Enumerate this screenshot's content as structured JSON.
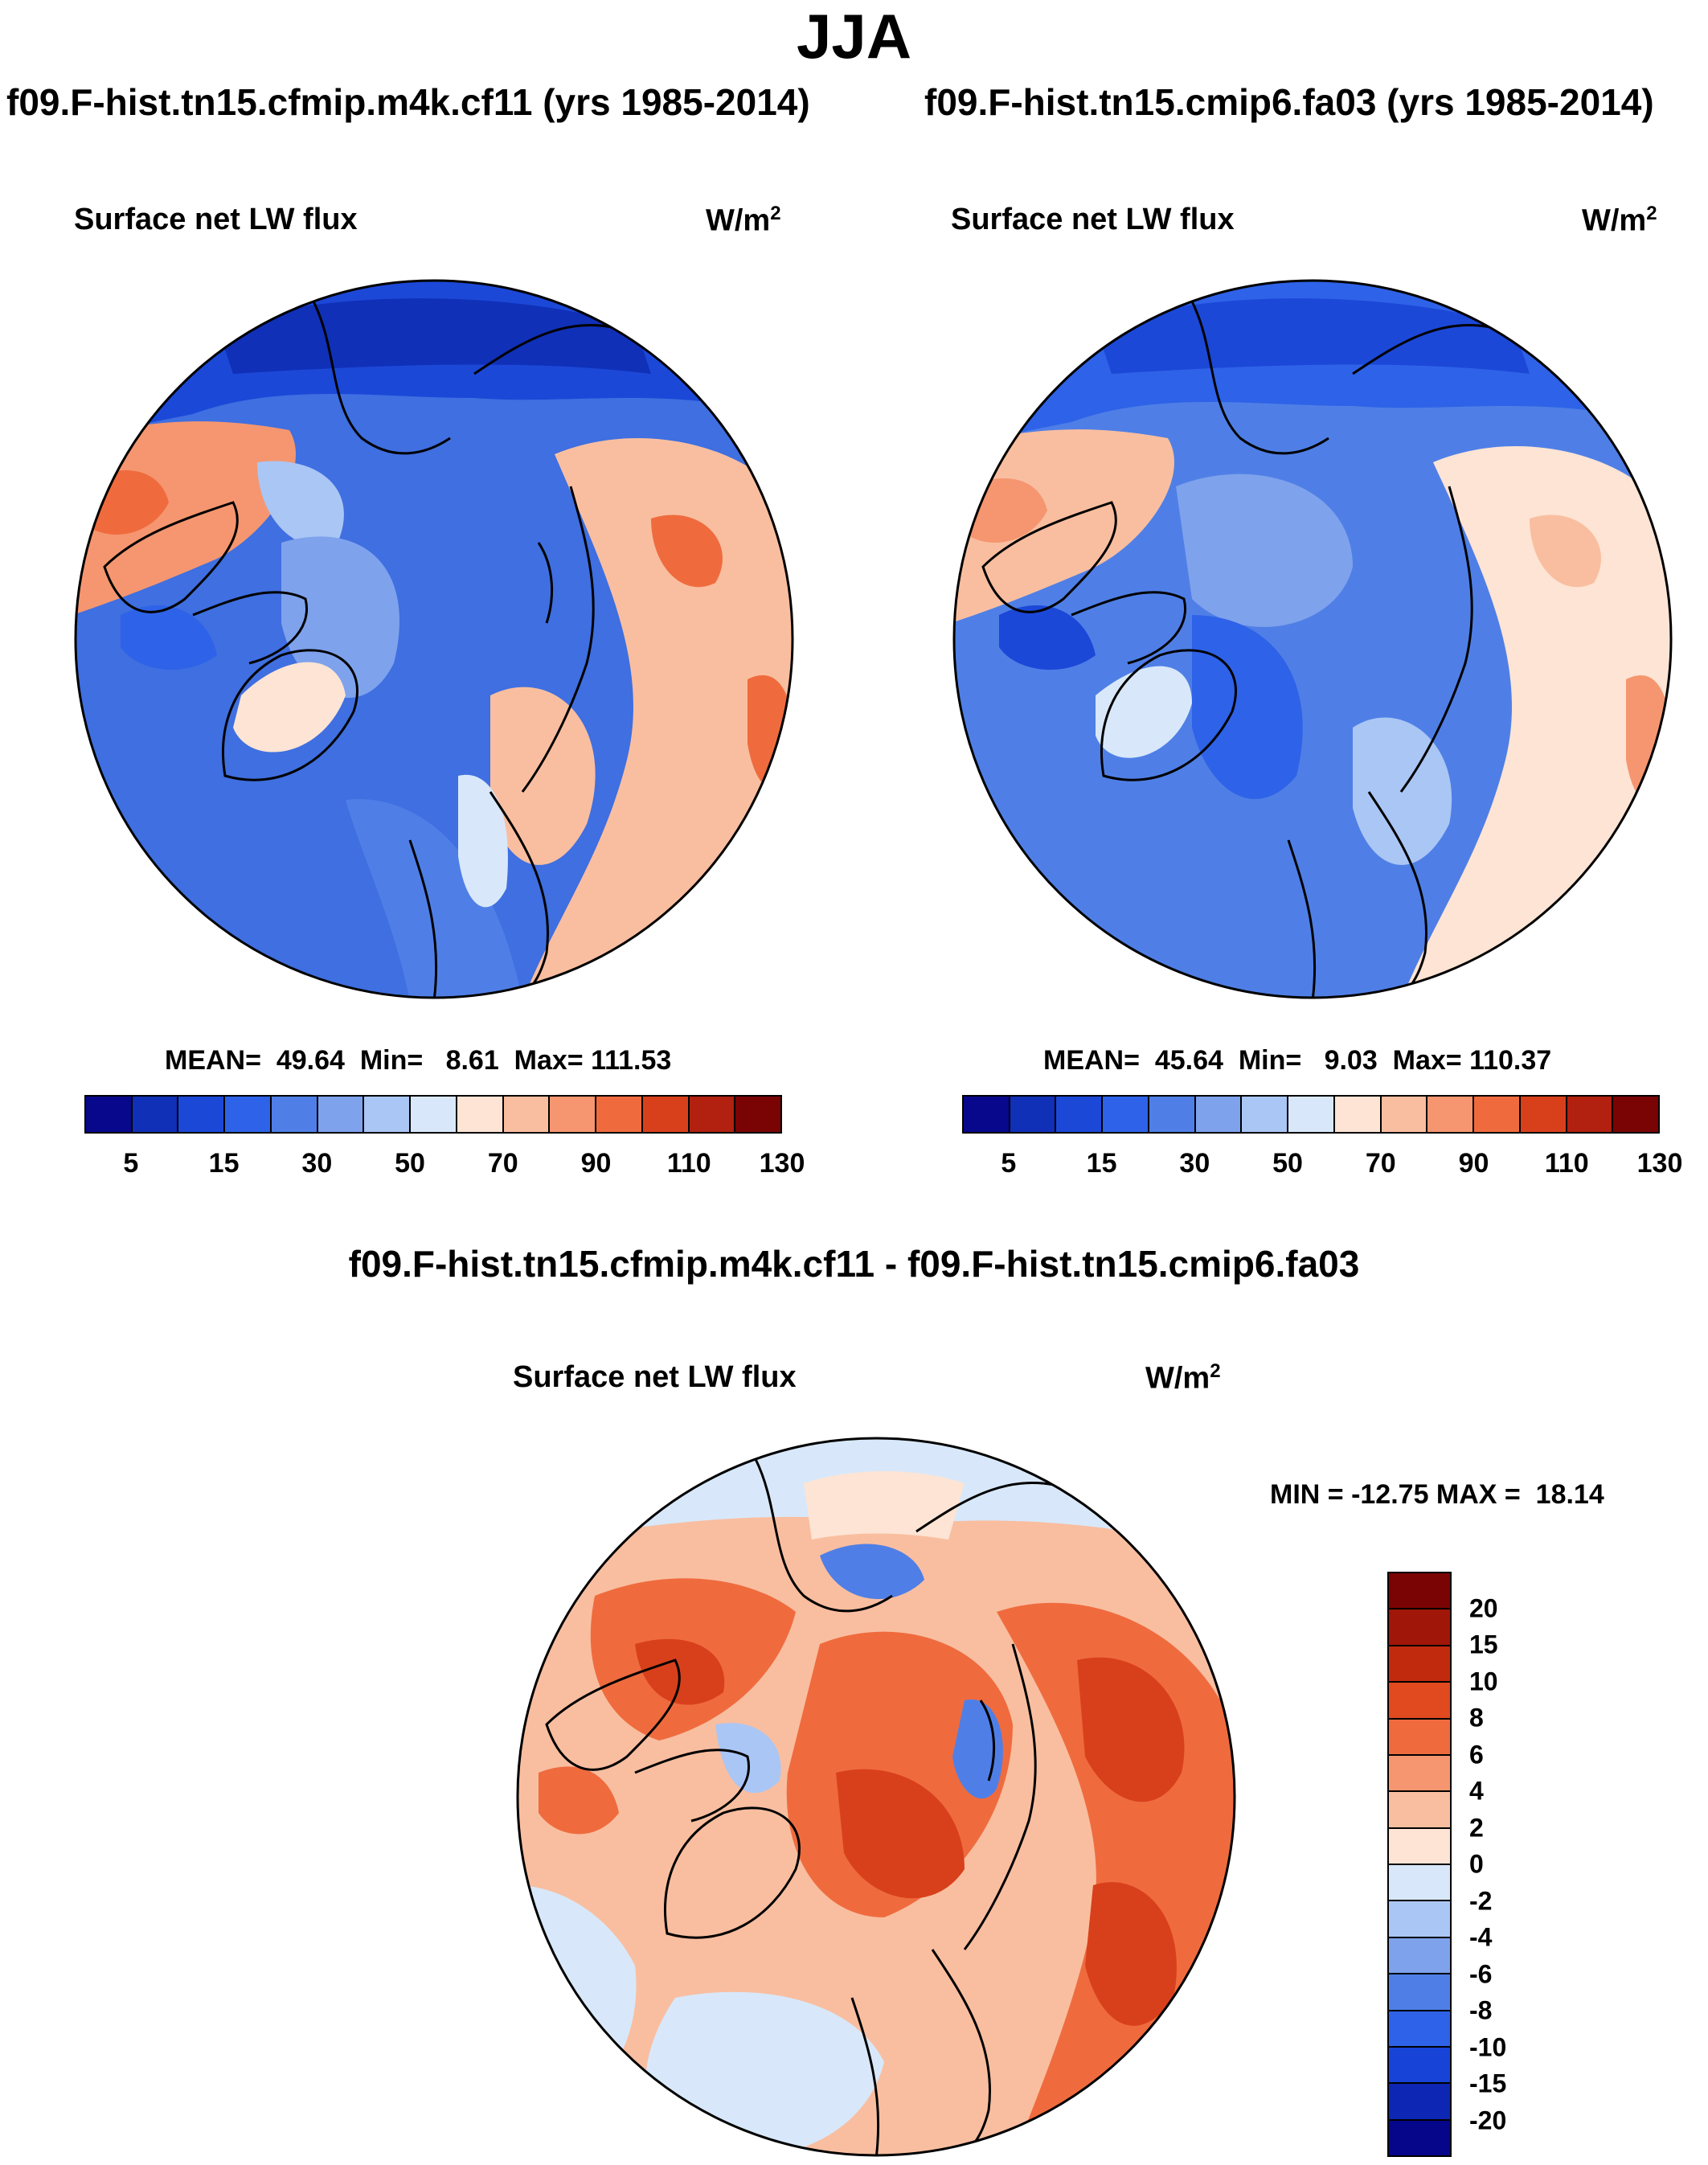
{
  "season": "JJA",
  "panels": [
    {
      "case_title": "f09.F-hist.tn15.cfmip.m4k.cf11 (yrs 1985-2014)",
      "variable": "Surface net LW flux",
      "units": "W/m",
      "units_exp": "2",
      "stats": "MEAN=  49.64  Min=   8.61  Max= 111.53",
      "colorbar_ticks": [
        "5",
        "15",
        "30",
        "50",
        "70",
        "90",
        "110",
        "130"
      ]
    },
    {
      "case_title": "f09.F-hist.tn15.cmip6.fa03 (yrs 1985-2014)",
      "variable": "Surface net LW flux",
      "units": "W/m",
      "units_exp": "2",
      "stats": "MEAN=  45.64  Min=   9.03  Max= 110.37",
      "colorbar_ticks": [
        "5",
        "15",
        "30",
        "50",
        "70",
        "90",
        "110",
        "130"
      ]
    }
  ],
  "diff": {
    "title": "f09.F-hist.tn15.cfmip.m4k.cf11 - f09.F-hist.tn15.cmip6.fa03",
    "variable": "Surface net LW flux",
    "units": "W/m",
    "units_exp": "2",
    "stats": "MIN = -12.75 MAX =  18.14",
    "colorbar_ticks": [
      "20",
      "15",
      "10",
      "8",
      "6",
      "4",
      "2",
      "0",
      "-2",
      "-4",
      "-6",
      "-8",
      "-10",
      "-15",
      "-20"
    ]
  },
  "colors": {
    "abs_scale": [
      "#08088c",
      "#1030b8",
      "#1c48d8",
      "#2e62e8",
      "#4f7fe6",
      "#7ea2ec",
      "#aac6f4",
      "#d8e8fa",
      "#fde4d4",
      "#f9bea0",
      "#f59670",
      "#ef6b3e",
      "#d8401c",
      "#b22010",
      "#7a0404"
    ],
    "diff_scale": [
      "#06068a",
      "#0d26b4",
      "#1744d6",
      "#2e62e8",
      "#4f7fe6",
      "#7ea2ec",
      "#aac6f4",
      "#d8e8fa",
      "#fde4d4",
      "#f9bea0",
      "#f59670",
      "#ef6b3e",
      "#e04a1e",
      "#c22a0e",
      "#a01608",
      "#7a0404"
    ]
  }
}
